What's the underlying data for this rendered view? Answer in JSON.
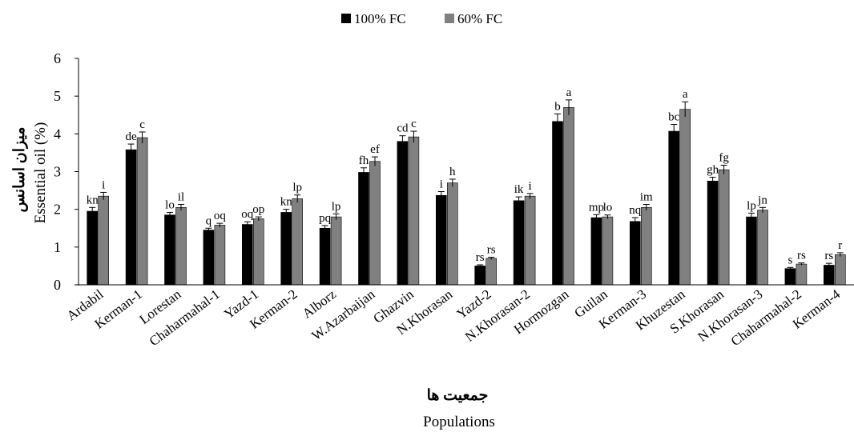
{
  "chart_data": {
    "type": "bar",
    "title": "",
    "ylabel": "Essential oil (%)",
    "ylabel_fa": "میزان اسانس",
    "xlabel": "Populations",
    "xlabel_fa": "جمعیت ها",
    "ylim": [
      0,
      6
    ],
    "yticks": [
      0,
      1,
      2,
      3,
      4,
      5,
      6
    ],
    "grid": false,
    "legend_position": "top-center",
    "colors": {
      "100% FC": "#000000",
      "60% FC": "#808080"
    },
    "categories": [
      "Ardabil",
      "Kerman-1",
      "Lorestan",
      "Chaharmahal-1",
      "Yazd-1",
      "Kerman-2",
      "Alborz",
      "W.Azarbaijan",
      "Ghazvin",
      "N.Khorasan",
      "Yazd-2",
      "N.Khorasan-2",
      "Hormozgan",
      "Guilan",
      "Kerman-3",
      "Khuzestan",
      "S.Khorasan",
      "N.Khorasan-3",
      "Chaharmahal-2",
      "Kerman-4"
    ],
    "series": [
      {
        "name": "100% FC",
        "values": [
          1.95,
          3.58,
          1.85,
          1.45,
          1.6,
          1.92,
          1.5,
          2.98,
          3.8,
          2.37,
          0.5,
          2.23,
          4.33,
          1.78,
          1.68,
          4.07,
          2.75,
          1.8,
          0.43,
          0.52
        ],
        "errors": [
          0.1,
          0.15,
          0.07,
          0.05,
          0.07,
          0.08,
          0.07,
          0.12,
          0.15,
          0.1,
          0.03,
          0.1,
          0.2,
          0.08,
          0.1,
          0.18,
          0.1,
          0.1,
          0.03,
          0.05
        ],
        "labels": [
          "kn",
          "de",
          "lo",
          "q",
          "oq",
          "kn",
          "pq",
          "fh",
          "cd",
          "i",
          "rs",
          "ik",
          "b",
          "mp",
          "nq",
          "bc",
          "gh",
          "lp",
          "s",
          "rs"
        ]
      },
      {
        "name": "60% FC",
        "values": [
          2.35,
          3.9,
          2.05,
          1.58,
          1.75,
          2.28,
          1.8,
          3.27,
          3.92,
          2.7,
          0.7,
          2.35,
          4.7,
          1.8,
          2.05,
          4.65,
          3.05,
          1.98,
          0.55,
          0.8
        ],
        "errors": [
          0.1,
          0.15,
          0.08,
          0.05,
          0.05,
          0.1,
          0.08,
          0.12,
          0.15,
          0.1,
          0.03,
          0.07,
          0.2,
          0.05,
          0.08,
          0.2,
          0.12,
          0.07,
          0.03,
          0.05
        ],
        "labels": [
          "i",
          "c",
          "il",
          "oq",
          "op",
          "lp",
          "lp",
          "ef",
          "c",
          "h",
          "rs",
          "i",
          "a",
          "lo",
          "im",
          "a",
          "fg",
          "jn",
          "rs",
          "r"
        ]
      }
    ]
  }
}
